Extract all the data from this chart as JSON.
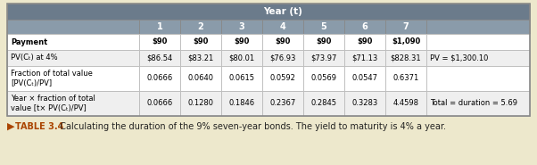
{
  "title": "Year (t)",
  "header_years": [
    "1",
    "2",
    "3",
    "4",
    "5",
    "6",
    "7"
  ],
  "rows": [
    {
      "label": "Payment",
      "values": [
        "$90",
        "$90",
        "$90",
        "$90",
        "$90",
        "$90",
        "$1,090"
      ],
      "extra": "",
      "label_bold": true
    },
    {
      "label": "PV(Cₜ) at 4%",
      "values": [
        "$86.54",
        "$83.21",
        "$80.01",
        "$76.93",
        "$73.97",
        "$71.13",
        "$828.31"
      ],
      "extra": "PV = $1,300.10",
      "label_bold": false
    },
    {
      "label": "Fraction of total value\n[PV(Cₜ)/PV]",
      "values": [
        "0.0666",
        "0.0640",
        "0.0615",
        "0.0592",
        "0.0569",
        "0.0547",
        "0.6371"
      ],
      "extra": "",
      "label_bold": false
    },
    {
      "label": "Year × fraction of total\nvalue [t× PV(Cₜ)/PV]",
      "values": [
        "0.0666",
        "0.1280",
        "0.1846",
        "0.2367",
        "0.2845",
        "0.3283",
        "4.4598"
      ],
      "extra": "Total = duration = 5.69",
      "label_bold": false
    }
  ],
  "caption_arrow": "▶",
  "caption_bold": "TABLE 3.4",
  "caption_normal": "  Calculating the duration of the 9% seven-year bonds. The yield to maturity is 4% a year.",
  "header_bg": "#6B7B8B",
  "subheader_bg": "#8A9BAA",
  "row_bgs": [
    "#FFFFFF",
    "#FFFFFF",
    "#FFFFFF",
    "#FFFFFF"
  ],
  "outer_bg": "#EDE8CC",
  "table_border": "#888888",
  "cell_border": "#BBBBBB",
  "header_text": "#FFFFFF",
  "body_text": "#000000",
  "caption_arrow_color": "#AA4400",
  "caption_bold_color": "#AA4400",
  "caption_normal_color": "#222222"
}
